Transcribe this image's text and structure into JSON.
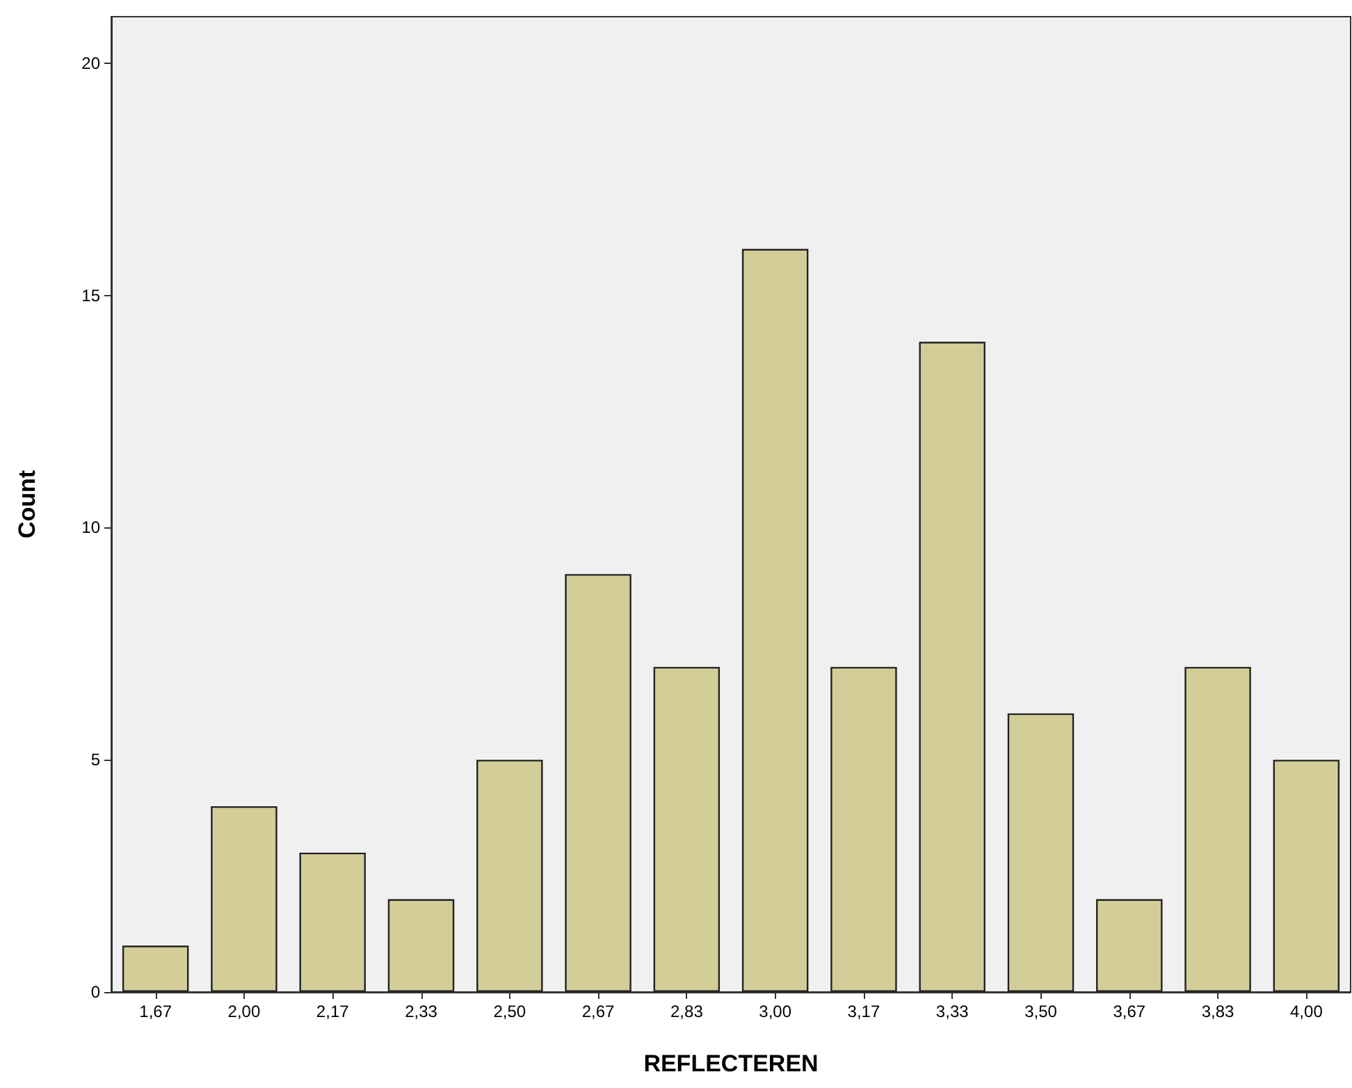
{
  "chart_data": {
    "type": "bar",
    "xlabel": "REFLECTEREN",
    "ylabel": "Count",
    "categories": [
      "1,67",
      "2,00",
      "2,17",
      "2,33",
      "2,50",
      "2,67",
      "2,83",
      "3,00",
      "3,17",
      "3,33",
      "3,50",
      "3,67",
      "3,83",
      "4,00"
    ],
    "values": [
      1,
      4,
      3,
      2,
      5,
      9,
      7,
      16,
      7,
      14,
      6,
      2,
      7,
      5
    ],
    "color": "#d3ce98",
    "ylim": [
      0,
      21
    ],
    "yticks": [
      0,
      5,
      10,
      15,
      20
    ],
    "grid": false
  }
}
